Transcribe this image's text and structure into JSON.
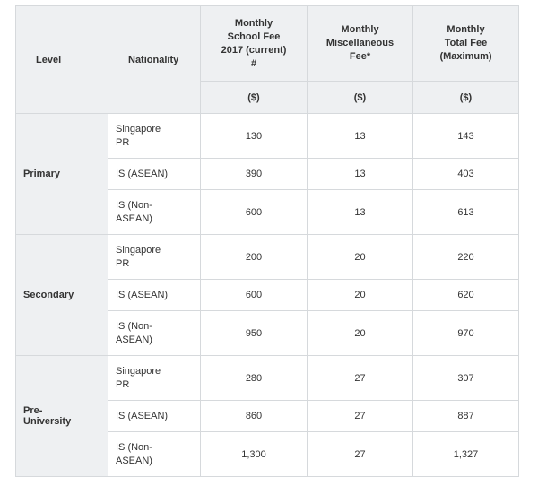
{
  "header": {
    "level": "Level",
    "nationality": "Nationality",
    "school_fee": [
      "Monthly",
      "School Fee",
      "2017 (current)",
      "#"
    ],
    "misc_fee": [
      "Monthly",
      "Miscellaneous",
      "Fee*"
    ],
    "total_fee": [
      "Monthly",
      "Total Fee",
      "(Maximum)"
    ],
    "unit": "($)"
  },
  "groups": [
    {
      "level": "Primary",
      "rows": [
        {
          "nationality": [
            "Singapore",
            "PR"
          ],
          "school": "130",
          "misc": "13",
          "total": "143"
        },
        {
          "nationality": [
            "IS (ASEAN)"
          ],
          "school": "390",
          "misc": "13",
          "total": "403"
        },
        {
          "nationality": [
            "IS (Non-",
            "ASEAN)"
          ],
          "school": "600",
          "misc": "13",
          "total": "613"
        }
      ]
    },
    {
      "level": "Secondary",
      "rows": [
        {
          "nationality": [
            "Singapore",
            "PR"
          ],
          "school": "200",
          "misc": "20",
          "total": "220"
        },
        {
          "nationality": [
            "IS (ASEAN)"
          ],
          "school": "600",
          "misc": "20",
          "total": "620"
        },
        {
          "nationality": [
            "IS (Non-",
            "ASEAN)"
          ],
          "school": "950",
          "misc": "20",
          "total": "970"
        }
      ]
    },
    {
      "level": "Pre-University",
      "level_lines": [
        "Pre-",
        "University"
      ],
      "rows": [
        {
          "nationality": [
            "Singapore",
            "PR"
          ],
          "school": "280",
          "misc": "27",
          "total": "307"
        },
        {
          "nationality": [
            "IS (ASEAN)"
          ],
          "school": "860",
          "misc": "27",
          "total": "887"
        },
        {
          "nationality": [
            "IS (Non-",
            "ASEAN)"
          ],
          "school": "1,300",
          "misc": "27",
          "total": "1,327"
        }
      ]
    }
  ]
}
